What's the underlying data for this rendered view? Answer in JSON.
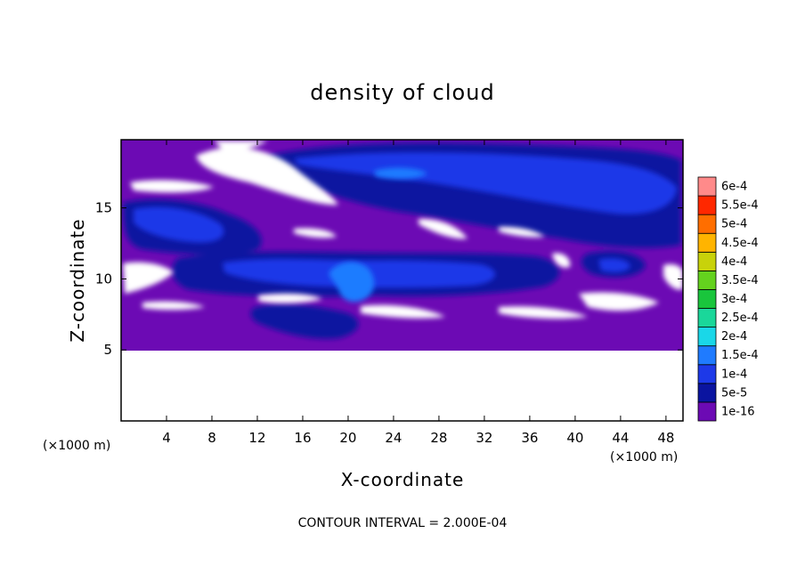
{
  "chart_data": {
    "type": "heatmap",
    "title": "density of cloud",
    "xlabel": "X-coordinate",
    "ylabel": "Z-coordinate",
    "x_unit": "(×1000 m)",
    "y_unit": "(×1000 m)",
    "xlim": [
      0,
      49.5
    ],
    "ylim": [
      0,
      19.8
    ],
    "x_ticks": [
      4,
      8,
      12,
      16,
      20,
      24,
      28,
      32,
      36,
      40,
      44,
      48
    ],
    "y_ticks": [
      5,
      10,
      15
    ],
    "colorbar": {
      "levels": [
        "1e-16",
        "5e-5",
        "1e-4",
        "1.5e-4",
        "2e-4",
        "2.5e-4",
        "3e-4",
        "3.5e-4",
        "4e-4",
        "4.5e-4",
        "5e-4",
        "5.5e-4",
        "6e-4"
      ],
      "colors": [
        "#6c0ab4",
        "#0a14a0",
        "#1d39e8",
        "#1f7bff",
        "#1ad7e8",
        "#1ad79a",
        "#19c53c",
        "#64d21e",
        "#c8d20a",
        "#ffb400",
        "#ff6e00",
        "#ff2800",
        "#ff8a8a"
      ]
    },
    "contour_interval": "CONTOUR INTERVAL = 2.000E-04"
  },
  "colors": {
    "background": "#ffffff",
    "no_cloud": "#ffffff",
    "base_cloud": "#6c0ab4",
    "low_density": "#0a14a0",
    "mid_density": "#1d39e8",
    "peak_density": "#1f7bff"
  }
}
